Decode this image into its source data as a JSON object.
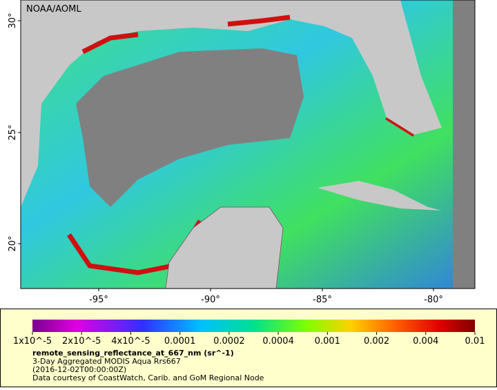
{
  "map": {
    "watermark": "NOAA/AOML",
    "lat_labels": [
      "30°",
      "25°",
      "20°"
    ],
    "lon_labels": [
      "-95°",
      "-90°",
      "-85°",
      "-80°"
    ]
  },
  "legend": {
    "colorbar_labels": [
      "1x10^-5",
      "2x10^-5",
      "4x10^-5",
      "0.0001",
      "0.0002",
      "0.0004",
      "0.001",
      "0.002",
      "0.004",
      "0.01"
    ],
    "variable": "remote_sensing_reflectance_at_667_nm (sr^-1)",
    "lines": [
      "3-Day Aggregated MODIS Aqua Rrs667",
      "(2016-12-02T00:00:00Z)",
      "Data courtesy of CoastWatch, Carib. and GoM Regional Node"
    ]
  }
}
